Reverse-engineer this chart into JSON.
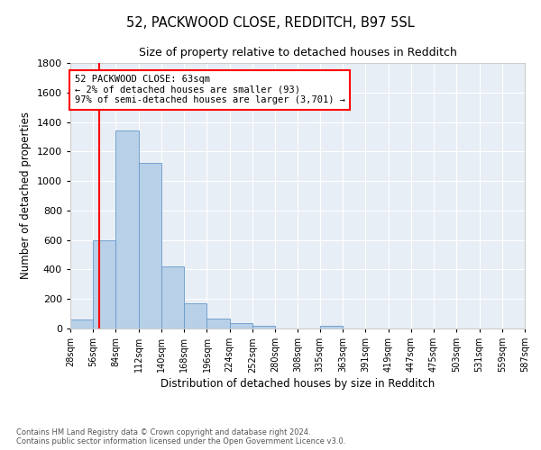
{
  "title": "52, PACKWOOD CLOSE, REDDITCH, B97 5SL",
  "subtitle": "Size of property relative to detached houses in Redditch",
  "xlabel": "Distribution of detached houses by size in Redditch",
  "ylabel": "Number of detached properties",
  "footnote1": "Contains HM Land Registry data © Crown copyright and database right 2024.",
  "footnote2": "Contains public sector information licensed under the Open Government Licence v3.0.",
  "bin_edges": [
    28,
    56,
    84,
    112,
    140,
    168,
    196,
    224,
    252,
    280,
    308,
    335,
    363,
    391,
    419,
    447,
    475,
    503,
    531,
    559,
    587
  ],
  "bar_heights": [
    60,
    600,
    1340,
    1120,
    420,
    170,
    65,
    38,
    18,
    0,
    0,
    18,
    0,
    0,
    0,
    0,
    0,
    0,
    0,
    0
  ],
  "bar_color": "#b8d0e8",
  "bar_edgecolor": "#6699cc",
  "bg_color": "#e8eef5",
  "vline_x": 63,
  "vline_color": "red",
  "annotation_text": "52 PACKWOOD CLOSE: 63sqm\n← 2% of detached houses are smaller (93)\n97% of semi-detached houses are larger (3,701) →",
  "annotation_box_color": "white",
  "annotation_box_edgecolor": "red",
  "ylim": [
    0,
    1800
  ],
  "yticks": [
    0,
    200,
    400,
    600,
    800,
    1000,
    1200,
    1400,
    1600,
    1800
  ]
}
